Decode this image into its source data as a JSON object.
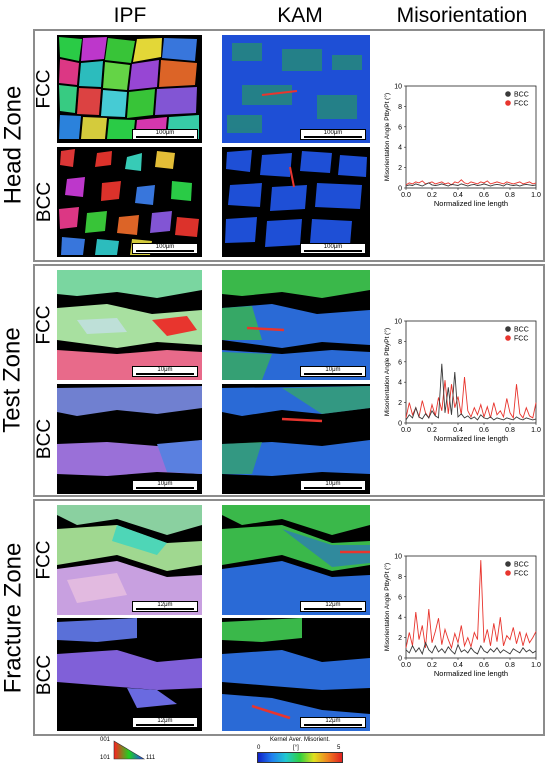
{
  "column_headers": {
    "ipf": "IPF",
    "kam": "KAM",
    "misorientation": "Misorientation"
  },
  "zones": [
    {
      "label": "Head Zone",
      "phases": [
        "FCC",
        "BCC"
      ],
      "scalebars": {
        "fcc_ipf": "100μm",
        "fcc_kam": "100μm",
        "bcc_ipf": "100μm",
        "bcc_kam": "100μm"
      }
    },
    {
      "label": "Test Zone",
      "phases": [
        "FCC",
        "BCC"
      ],
      "scalebars": {
        "fcc_ipf": "10μm",
        "fcc_kam": "10μm",
        "bcc_ipf": "10μm",
        "bcc_kam": "10μm"
      }
    },
    {
      "label": "Fracture Zone",
      "phases": [
        "FCC",
        "BCC"
      ],
      "scalebars": {
        "fcc_ipf": "12μm",
        "fcc_kam": "12μm",
        "bcc_ipf": "12μm",
        "bcc_kam": "12μm"
      }
    }
  ],
  "legend": {
    "ipf_triangle": {
      "corner_001": "001",
      "corner_101": "101",
      "corner_111": "111"
    },
    "kam_colorbar": {
      "title": "Kernel Aver. Misorient.",
      "unit": "[°]",
      "min": "0",
      "max": "5"
    }
  },
  "colors": {
    "bcc": "#3a3a3a",
    "fcc": "#e8352e",
    "zone_border": "#8c8c8c"
  },
  "chart_data": [
    {
      "type": "line",
      "title": "",
      "xlabel": "Normalized line length",
      "ylabel": "Misorientation Angle PtbyPt (°)",
      "xlim": [
        0,
        1
      ],
      "ylim": [
        0,
        10
      ],
      "xticks": [
        "0.0",
        "0.2",
        "0.4",
        "0.6",
        "0.8",
        "1.0"
      ],
      "yticks": [
        "0",
        "2",
        "4",
        "6",
        "8",
        "10"
      ],
      "legend_position": "top-right",
      "series": [
        {
          "name": "BCC",
          "color": "#3a3a3a",
          "values": [
            0.2,
            0.3,
            0.25,
            0.4,
            0.3,
            0.2,
            0.35,
            0.5,
            0.3,
            0.25,
            0.3,
            0.4,
            0.3,
            0.2,
            0.35,
            0.3,
            0.25,
            0.4,
            0.3,
            0.2,
            0.3,
            0.35,
            0.25,
            0.3,
            0.4,
            0.3,
            0.2,
            0.3,
            0.35,
            0.3,
            0.2,
            0.4,
            0.3,
            0.25,
            0.3,
            0.2,
            0.3,
            0.35,
            0.3,
            0.25,
            0.3
          ]
        },
        {
          "name": "FCC",
          "color": "#e8352e",
          "values": [
            0.3,
            0.5,
            0.4,
            0.6,
            0.5,
            0.7,
            0.4,
            0.5,
            0.6,
            0.4,
            0.5,
            0.6,
            0.4,
            0.5,
            0.3,
            0.6,
            0.5,
            0.8,
            0.5,
            0.4,
            0.6,
            0.5,
            0.4,
            0.6,
            0.5,
            0.7,
            0.4,
            0.5,
            0.6,
            0.5,
            0.4,
            0.6,
            0.5,
            0.4,
            0.5,
            0.6,
            0.4,
            0.5,
            0.6,
            0.4,
            0.5
          ]
        }
      ]
    },
    {
      "type": "line",
      "title": "",
      "xlabel": "Normalized line length",
      "ylabel": "Misorientation Angle PtbyPt (°)",
      "xlim": [
        0,
        1
      ],
      "ylim": [
        0,
        10
      ],
      "xticks": [
        "0.0",
        "0.2",
        "0.4",
        "0.6",
        "0.8",
        "1.0"
      ],
      "yticks": [
        "0",
        "2",
        "4",
        "6",
        "8",
        "10"
      ],
      "legend_position": "top-right",
      "series": [
        {
          "name": "BCC",
          "color": "#3a3a3a",
          "values": [
            0.3,
            0.8,
            0.5,
            1.5,
            0.6,
            0.4,
            0.9,
            0.5,
            1.2,
            0.7,
            0.5,
            5.8,
            1.0,
            3.5,
            0.8,
            5.0,
            0.6,
            0.9,
            0.5,
            0.7,
            0.4,
            0.6,
            0.3,
            0.8,
            0.5,
            0.4,
            0.6,
            0.3,
            0.5,
            0.4,
            0.3,
            0.5,
            0.4,
            0.3,
            0.6,
            0.4,
            0.3,
            0.5,
            0.4,
            0.3,
            0.4
          ]
        },
        {
          "name": "FCC",
          "color": "#e8352e",
          "values": [
            0.5,
            2.0,
            0.8,
            1.5,
            0.6,
            2.2,
            1.0,
            0.5,
            1.8,
            0.7,
            2.5,
            1.2,
            4.2,
            0.9,
            3.8,
            1.5,
            2.6,
            0.8,
            4.5,
            1.2,
            0.6,
            1.5,
            0.8,
            1.8,
            0.6,
            1.6,
            0.5,
            2.0,
            0.8,
            1.2,
            0.6,
            2.4,
            1.0,
            0.5,
            3.8,
            0.9,
            0.5,
            1.5,
            0.7,
            0.5,
            2.0
          ]
        }
      ]
    },
    {
      "type": "line",
      "title": "",
      "xlabel": "Normalized line length",
      "ylabel": "Misorientation Angle PtbyPt (°)",
      "xlim": [
        0,
        1
      ],
      "ylim": [
        0,
        10
      ],
      "xticks": [
        "0.0",
        "0.2",
        "0.4",
        "0.6",
        "0.8",
        "1.0"
      ],
      "yticks": [
        "0",
        "2",
        "4",
        "6",
        "8",
        "10"
      ],
      "legend_position": "top-right",
      "series": [
        {
          "name": "BCC",
          "color": "#3a3a3a",
          "values": [
            0.8,
            0.5,
            1.2,
            0.6,
            1.0,
            0.4,
            1.5,
            0.8,
            0.5,
            1.2,
            0.6,
            0.9,
            0.5,
            1.1,
            0.7,
            0.4,
            1.3,
            0.6,
            0.8,
            0.5,
            1.0,
            0.6,
            0.4,
            1.2,
            0.7,
            0.5,
            0.9,
            0.6,
            1.0,
            0.5,
            0.8,
            0.6,
            0.4,
            0.9,
            0.7,
            0.5,
            1.0,
            0.6,
            0.8,
            0.5,
            0.7
          ]
        },
        {
          "name": "FCC",
          "color": "#e8352e",
          "values": [
            1.0,
            2.5,
            1.2,
            4.5,
            1.8,
            3.2,
            1.0,
            4.8,
            1.5,
            2.6,
            3.9,
            1.3,
            2.8,
            1.8,
            1.0,
            2.4,
            1.5,
            3.2,
            1.2,
            2.0,
            1.1,
            2.5,
            1.8,
            9.6,
            1.5,
            2.8,
            1.2,
            3.4,
            1.6,
            4.0,
            1.2,
            2.2,
            1.8,
            3.0,
            1.4,
            2.6,
            1.2,
            2.4,
            1.5,
            2.0,
            2.6
          ]
        }
      ]
    }
  ]
}
